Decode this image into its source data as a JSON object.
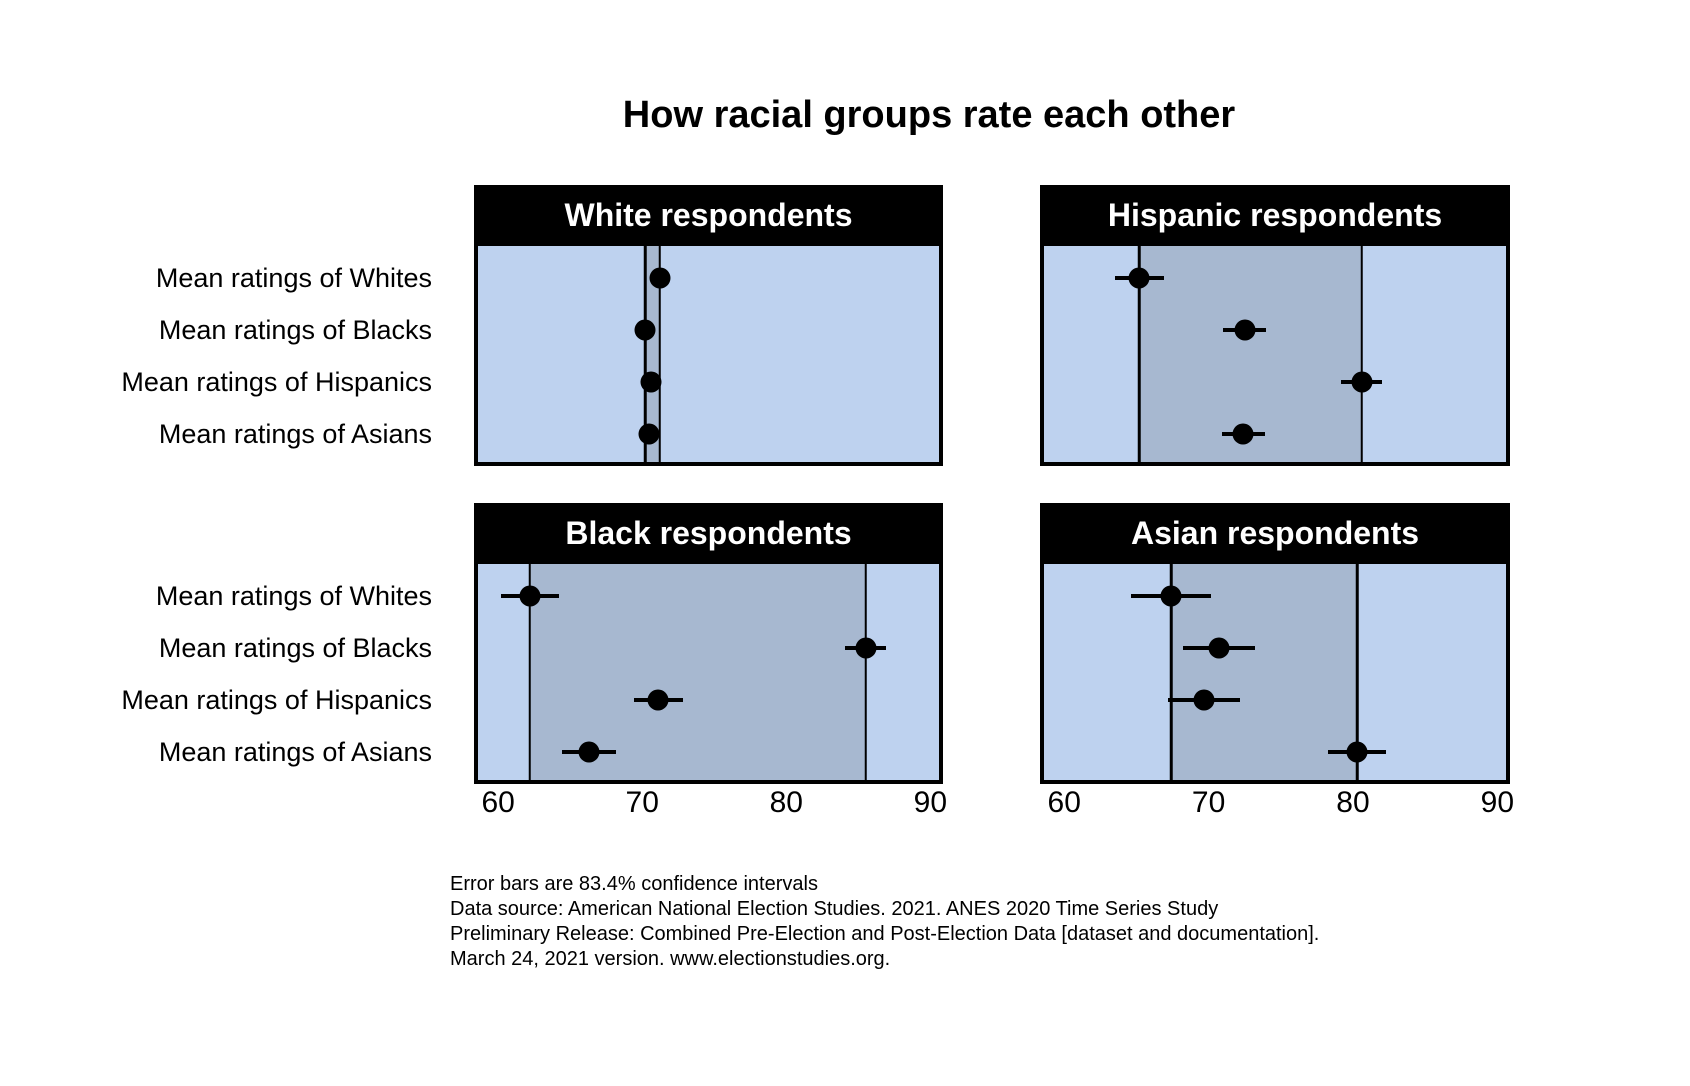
{
  "chart_data": {
    "type": "scatter",
    "title": "How racial groups rate each other",
    "categories": [
      "Mean ratings of Whites",
      "Mean ratings of Blacks",
      "Mean ratings of Hispanics",
      "Mean ratings of Asians"
    ],
    "xlim": [
      58.6,
      90.6
    ],
    "xticks": [
      60,
      70,
      80,
      90
    ],
    "grid": false,
    "legend": "none",
    "error_note": "Error bars are 83.4% confidence intervals",
    "panels": [
      {
        "name": "White respondents",
        "position": "top-left",
        "means": [
          71.2,
          70.2,
          70.6,
          70.5
        ],
        "ci_half_widths": [
          0.5,
          0.5,
          0.5,
          0.5
        ],
        "range_band": [
          70.2,
          71.2
        ]
      },
      {
        "name": "Hispanic respondents",
        "position": "top-right",
        "means": [
          65.2,
          72.5,
          80.6,
          72.4
        ],
        "ci_half_widths": [
          1.7,
          1.5,
          1.4,
          1.5
        ],
        "range_band": [
          65.2,
          80.6
        ]
      },
      {
        "name": "Black respondents",
        "position": "bottom-left",
        "means": [
          62.2,
          85.5,
          71.1,
          66.3
        ],
        "ci_half_widths": [
          2.0,
          1.4,
          1.7,
          1.9
        ],
        "range_band": [
          62.2,
          85.5
        ]
      },
      {
        "name": "Asian respondents",
        "position": "bottom-right",
        "means": [
          67.4,
          70.7,
          69.7,
          80.3
        ],
        "ci_half_widths": [
          2.8,
          2.5,
          2.5,
          2.0
        ],
        "range_band": [
          67.4,
          80.3
        ]
      }
    ]
  },
  "footer": {
    "lines": [
      "Error bars are 83.4% confidence intervals",
      "Data source: American National Election Studies. 2021. ANES 2020 Time Series Study",
      "Preliminary Release: Combined Pre-Election and Post-Election Data [dataset and documentation].",
      "March 24, 2021 version. www.electionstudies.org."
    ]
  },
  "colors": {
    "panel_bg": "#bed2ef",
    "range_band": "#a7b8d0",
    "header_bg": "#000000",
    "header_text": "#ffffff",
    "point": "#000000"
  }
}
